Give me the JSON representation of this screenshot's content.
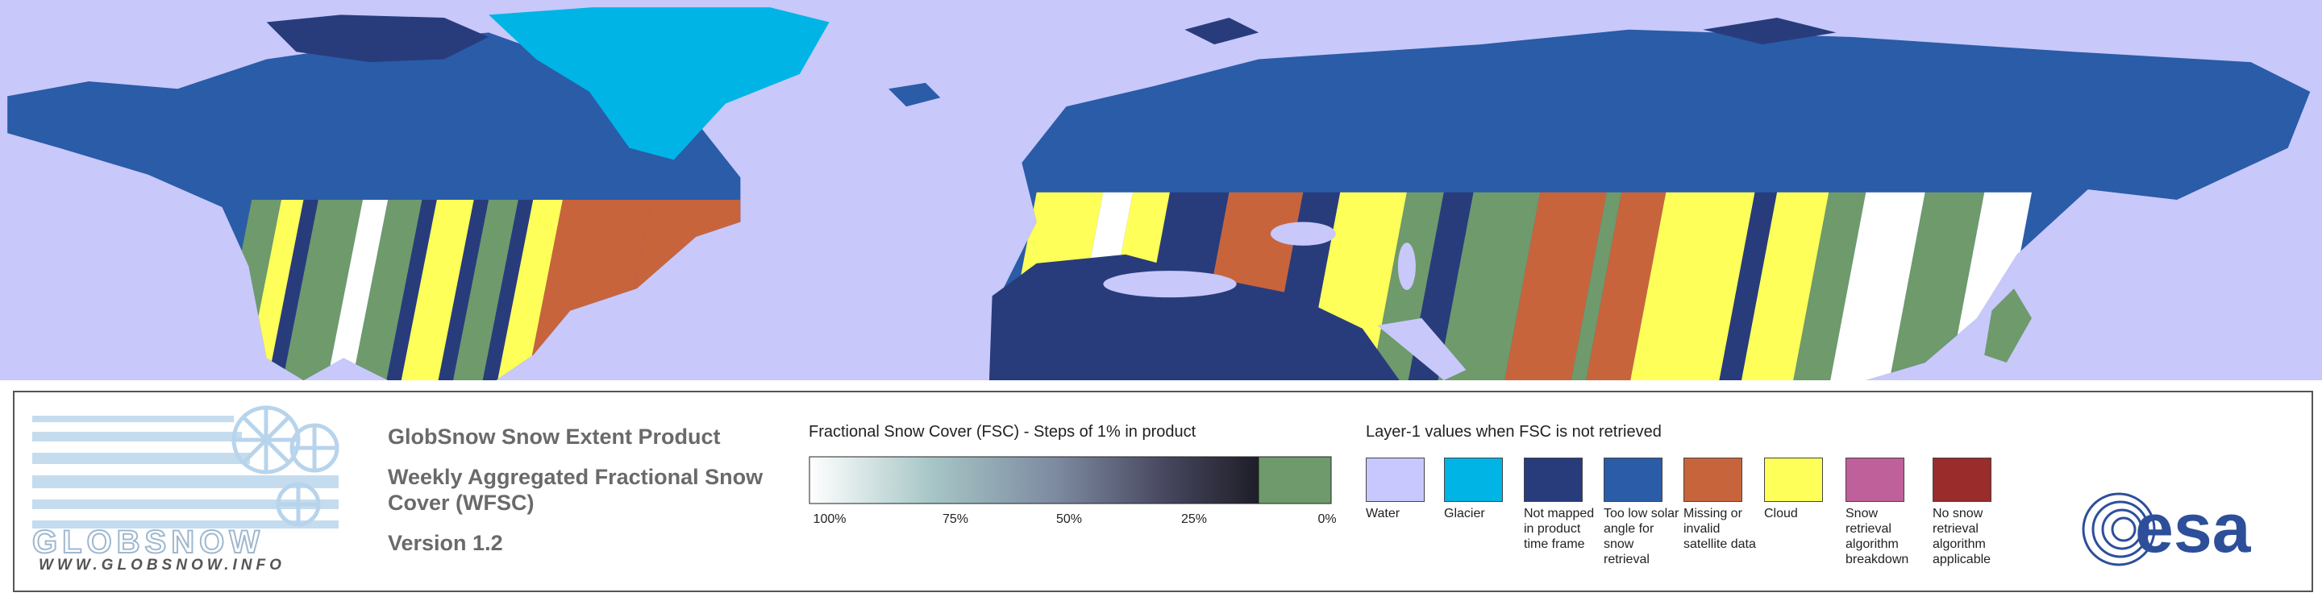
{
  "header": {
    "title": "GlobSnow Snow Extent Product",
    "subtitle": "Weekly Aggregated Fractional Snow Cover (WFSC)",
    "version": "Version 1.2"
  },
  "logo": {
    "name": "GLOBSNOW",
    "url": "WWW.GLOBSNOW.INFO"
  },
  "fsc_legend": {
    "title": "Fractional Snow Cover (FSC) - Steps of 1% in product",
    "ticks": [
      "100%",
      "75%",
      "50%",
      "25%",
      "0%"
    ]
  },
  "layer_legend": {
    "title": "Layer-1 values when FSC is not retrieved",
    "items": [
      {
        "label": "Water",
        "color": "#c8c8ff"
      },
      {
        "label": "Glacier",
        "color": "#00b4e6"
      },
      {
        "label": "Not mapped in product time frame",
        "color": "#283c7c"
      },
      {
        "label": "Too low solar angle for snow retrieval",
        "color": "#2a5ca8"
      },
      {
        "label": "Missing or invalid satellite data",
        "color": "#c8643c"
      },
      {
        "label": "Cloud",
        "color": "#ffff5a"
      },
      {
        "label": "Snow retrieval algorithm breakdown",
        "color": "#c0609a"
      },
      {
        "label": "No snow retrieval algorithm applicable",
        "color": "#9a2c2c"
      }
    ]
  },
  "esa": "esa"
}
